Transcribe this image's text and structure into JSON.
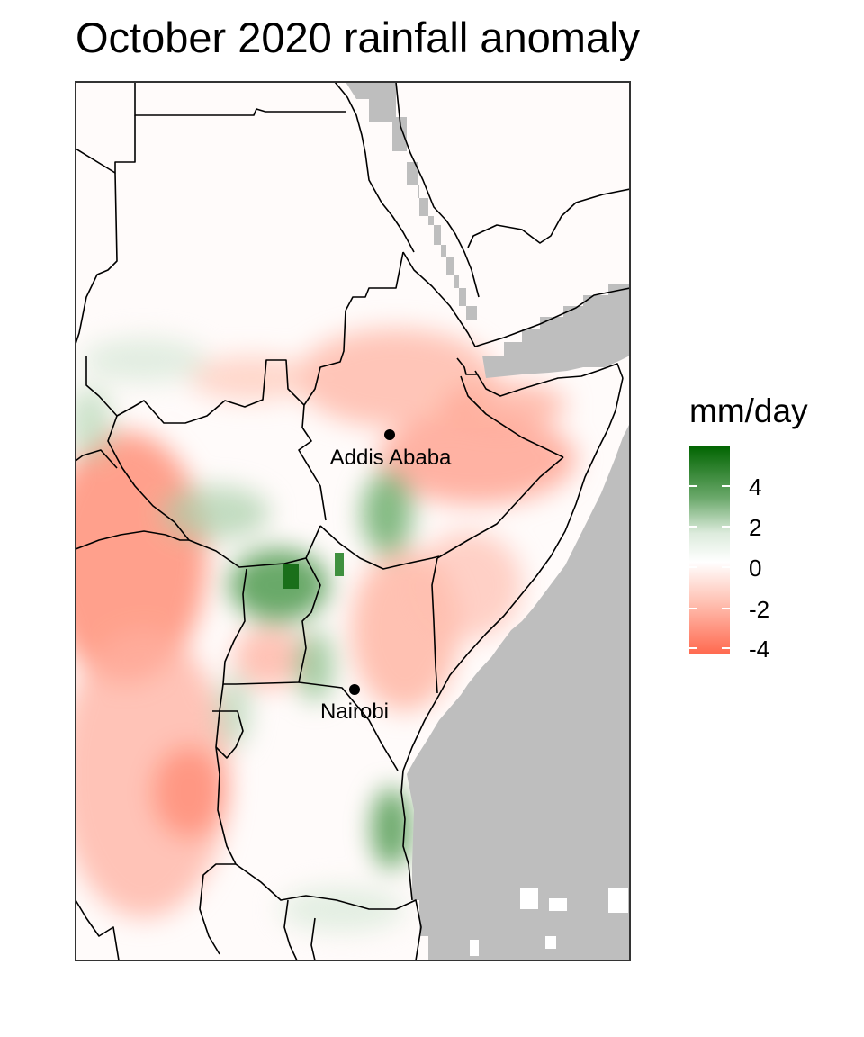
{
  "title": "October 2020 rainfall anomaly",
  "legend": {
    "title": "mm/day",
    "ticks": [
      "4",
      "2",
      "0",
      "-2",
      "-4"
    ],
    "tick_values": [
      4,
      2,
      0,
      -2,
      -4
    ],
    "range": [
      -4.6,
      5.8
    ],
    "colors": {
      "low": "#ff6a50",
      "mid": "#ffffff",
      "high": "#006400"
    }
  },
  "colors": {
    "ocean": "#bebebe",
    "border": "#000000",
    "panel_border": "#333333"
  },
  "cities": [
    {
      "name": "Addis Ababa",
      "lon": 38.74,
      "lat": 9.03
    },
    {
      "name": "Nairobi",
      "lon": 36.82,
      "lat": -1.29
    }
  ]
}
